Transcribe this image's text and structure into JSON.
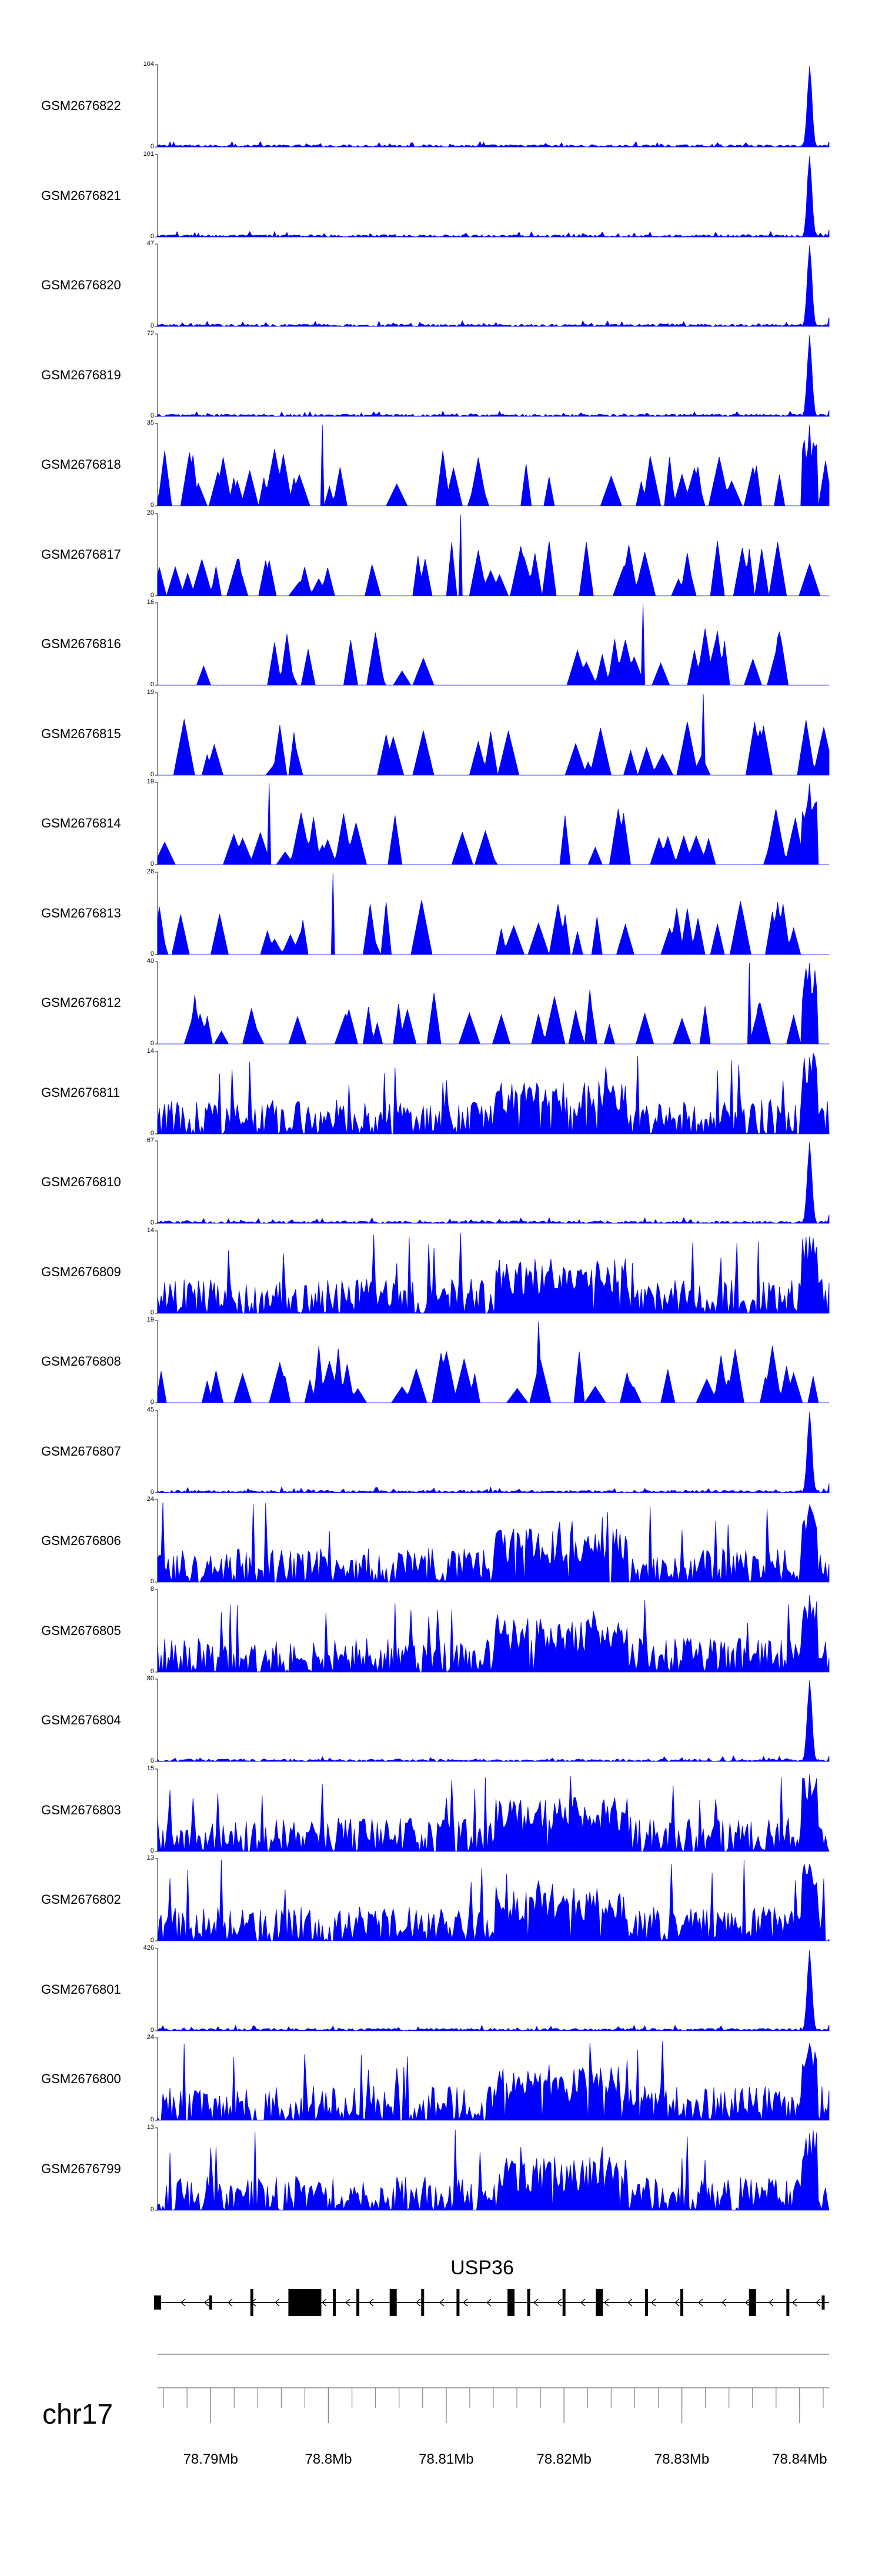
{
  "chart_data": {
    "type": "area",
    "description_title": "",
    "series": [
      {
        "name": "GSM2676822",
        "ymax": 104,
        "ymin": 0,
        "profile": "peak"
      },
      {
        "name": "GSM2676821",
        "ymax": 101,
        "ymin": 0,
        "profile": "peak"
      },
      {
        "name": "GSM2676820",
        "ymax": 47,
        "ymin": 0,
        "profile": "peak"
      },
      {
        "name": "GSM2676819",
        "ymax": 72,
        "ymin": 0,
        "profile": "peak"
      },
      {
        "name": "GSM2676818",
        "ymax": 35,
        "ymin": 0,
        "profile": "sparse_peak"
      },
      {
        "name": "GSM2676817",
        "ymax": 20,
        "ymin": 0,
        "profile": "sparse"
      },
      {
        "name": "GSM2676816",
        "ymax": 16,
        "ymin": 0,
        "profile": "sparse"
      },
      {
        "name": "GSM2676815",
        "ymax": 19,
        "ymin": 0,
        "profile": "sparse"
      },
      {
        "name": "GSM2676814",
        "ymax": 19,
        "ymin": 0,
        "profile": "sparse_peak"
      },
      {
        "name": "GSM2676813",
        "ymax": 26,
        "ymin": 0,
        "profile": "sparse"
      },
      {
        "name": "GSM2676812",
        "ymax": 40,
        "ymin": 0,
        "profile": "sparse_peak"
      },
      {
        "name": "GSM2676811",
        "ymax": 14,
        "ymin": 0,
        "profile": "dense"
      },
      {
        "name": "GSM2676810",
        "ymax": 67,
        "ymin": 0,
        "profile": "peak"
      },
      {
        "name": "GSM2676809",
        "ymax": 14,
        "ymin": 0,
        "profile": "dense"
      },
      {
        "name": "GSM2676808",
        "ymax": 19,
        "ymin": 0,
        "profile": "sparse"
      },
      {
        "name": "GSM2676807",
        "ymax": 45,
        "ymin": 0,
        "profile": "peak"
      },
      {
        "name": "GSM2676806",
        "ymax": 24,
        "ymin": 0,
        "profile": "dense"
      },
      {
        "name": "GSM2676805",
        "ymax": 8,
        "ymin": 0,
        "profile": "dense"
      },
      {
        "name": "GSM2676804",
        "ymax": 80,
        "ymin": 0,
        "profile": "peak"
      },
      {
        "name": "GSM2676803",
        "ymax": 15,
        "ymin": 0,
        "profile": "dense"
      },
      {
        "name": "GSM2676802",
        "ymax": 13,
        "ymin": 0,
        "profile": "dense"
      },
      {
        "name": "GSM2676801",
        "ymax": 426,
        "ymin": 0,
        "profile": "peak"
      },
      {
        "name": "GSM2676800",
        "ymax": 24,
        "ymin": 0,
        "profile": "dense"
      },
      {
        "name": "GSM2676799",
        "ymax": 13,
        "ymin": 0,
        "profile": "dense"
      }
    ],
    "x_range_mb": [
      78.7855,
      78.8425
    ],
    "peak_position_mb": 78.8409,
    "gene": {
      "name": "USP36",
      "strand": "-",
      "exons_mb": [
        78.7855,
        78.79,
        78.7935,
        78.798,
        78.8005,
        78.8025,
        78.8055,
        78.808,
        78.811,
        78.8155,
        78.817,
        78.82,
        78.823,
        78.827,
        78.83,
        78.836,
        78.839,
        78.842
      ]
    },
    "chromosome": "chr17",
    "x_ticks": [
      {
        "label": "78.79Mb",
        "value": 78.79
      },
      {
        "label": "78.8Mb",
        "value": 78.8
      },
      {
        "label": "78.81Mb",
        "value": 78.81
      },
      {
        "label": "78.82Mb",
        "value": 78.82
      },
      {
        "label": "78.83Mb",
        "value": 78.83
      },
      {
        "label": "78.84Mb",
        "value": 78.84
      }
    ],
    "colors": {
      "signal": "#0000ff",
      "axis": "#666666",
      "gene": "#000000"
    }
  }
}
